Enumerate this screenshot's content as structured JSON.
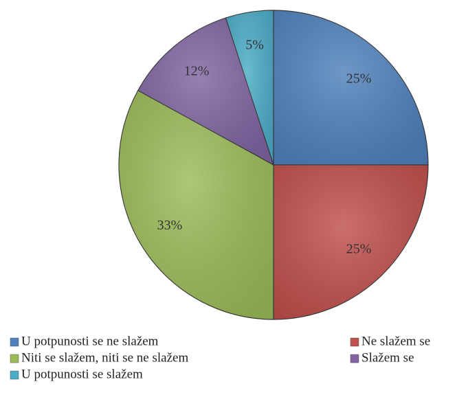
{
  "chart_data": {
    "type": "pie",
    "categories": [
      "U potpunosti se ne slažem",
      "Ne slažem se",
      "Niti se slažem, niti se ne slažem",
      "Slažem se",
      "U potpunosti se slažem"
    ],
    "values": [
      25,
      25,
      33,
      12,
      5
    ],
    "value_labels": [
      "25%",
      "25%",
      "33%",
      "12%",
      "5%"
    ],
    "colors": [
      "#4f81bd",
      "#c0504d",
      "#9bbb59",
      "#8064a2",
      "#4bacc6"
    ],
    "legend": "bottom"
  }
}
